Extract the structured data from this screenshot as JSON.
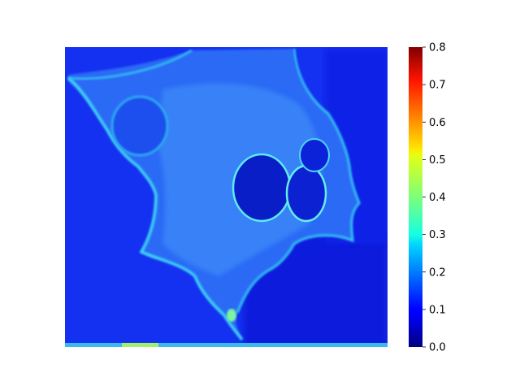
{
  "chart_data": {
    "type": "heatmap",
    "title": "",
    "xlabel": "",
    "ylabel": "",
    "colormap": "jet",
    "colorbar": {
      "range": [
        0.0,
        0.8
      ],
      "ticks": [
        0.0,
        0.1,
        0.2,
        0.3,
        0.4,
        0.5,
        0.6,
        0.7,
        0.8
      ],
      "tick_labels": [
        "0.0",
        "0.1",
        "0.2",
        "0.3",
        "0.4",
        "0.5",
        "0.6",
        "0.7",
        "0.8"
      ]
    },
    "axes_visible": false,
    "value_levels": {
      "background": 0.05,
      "cell_body": 0.17,
      "cell_edge": 0.3,
      "nucleus_rim": 0.32,
      "nucleus_interior": 0.04,
      "bright_spot": 0.42
    },
    "description_regions": [
      "cell-body",
      "nucleus-left",
      "nucleus-right",
      "nucleus-top",
      "upper-left-cell"
    ]
  }
}
